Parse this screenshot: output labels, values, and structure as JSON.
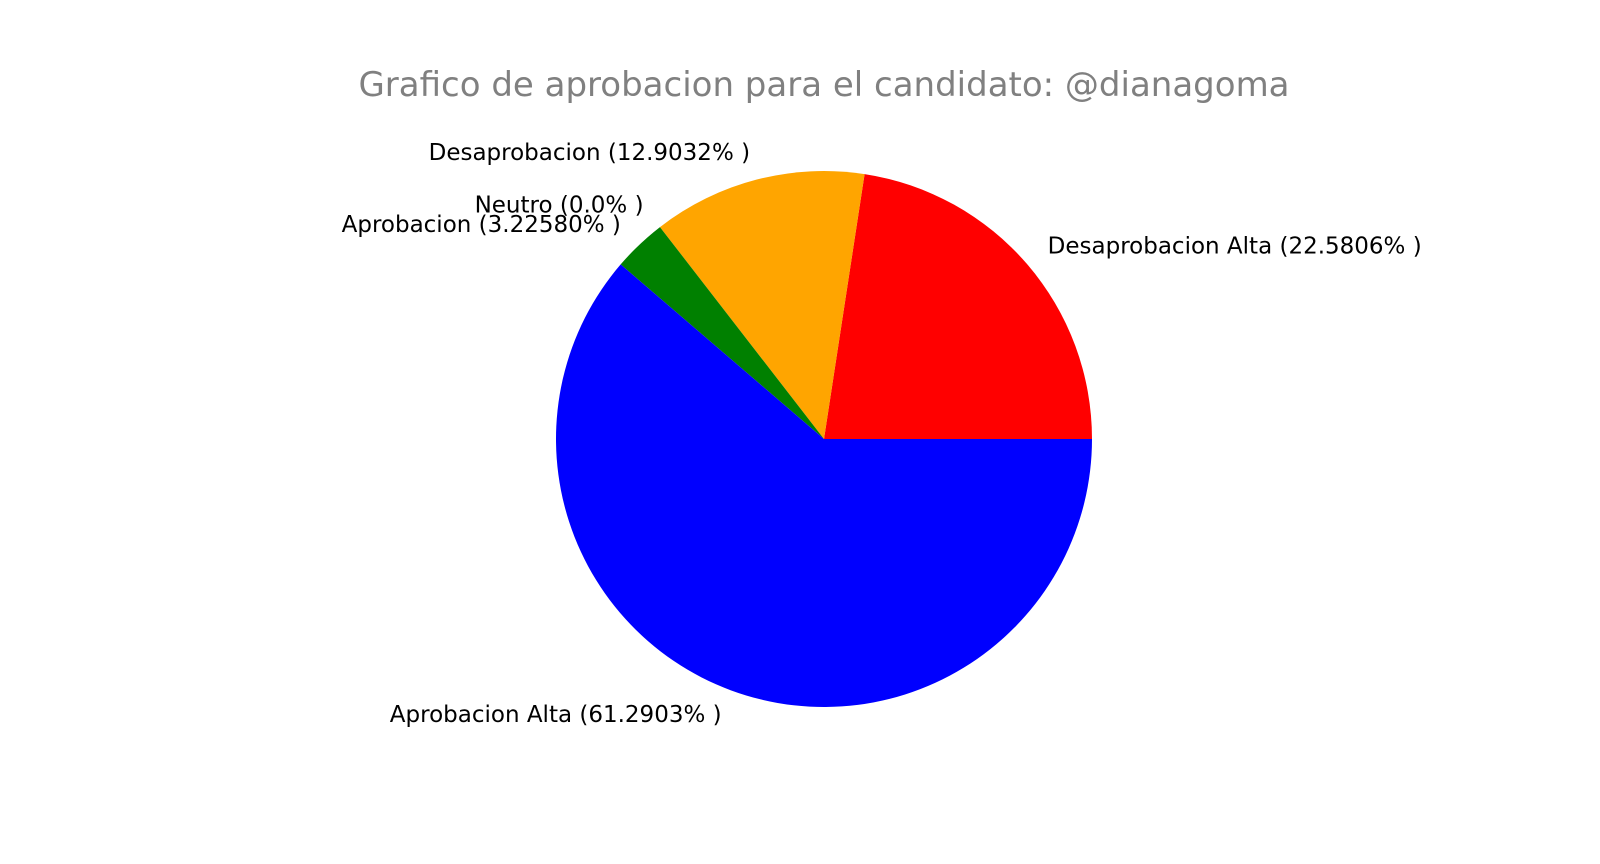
{
  "chart_data": {
    "type": "pie",
    "title": "Grafico de aprobacion para el candidato: @dianagoma",
    "start_angle_deg": 0,
    "direction": "counterclockwise",
    "slices": [
      {
        "label": "Desaprobacion Alta (22.5806% )",
        "value": 22.5806,
        "color": "#ff0000"
      },
      {
        "label": "Desaprobacion (12.9032% )",
        "value": 12.9032,
        "color": "#ffa500"
      },
      {
        "label": "Neutro (0.0% )",
        "value": 0.0,
        "color": "#808080"
      },
      {
        "label": "Aprobacion (3.22580% )",
        "value": 3.2258,
        "color": "#008000"
      },
      {
        "label": "Aprobacion Alta (61.2903% )",
        "value": 61.2903,
        "color": "#0000ff"
      }
    ]
  }
}
